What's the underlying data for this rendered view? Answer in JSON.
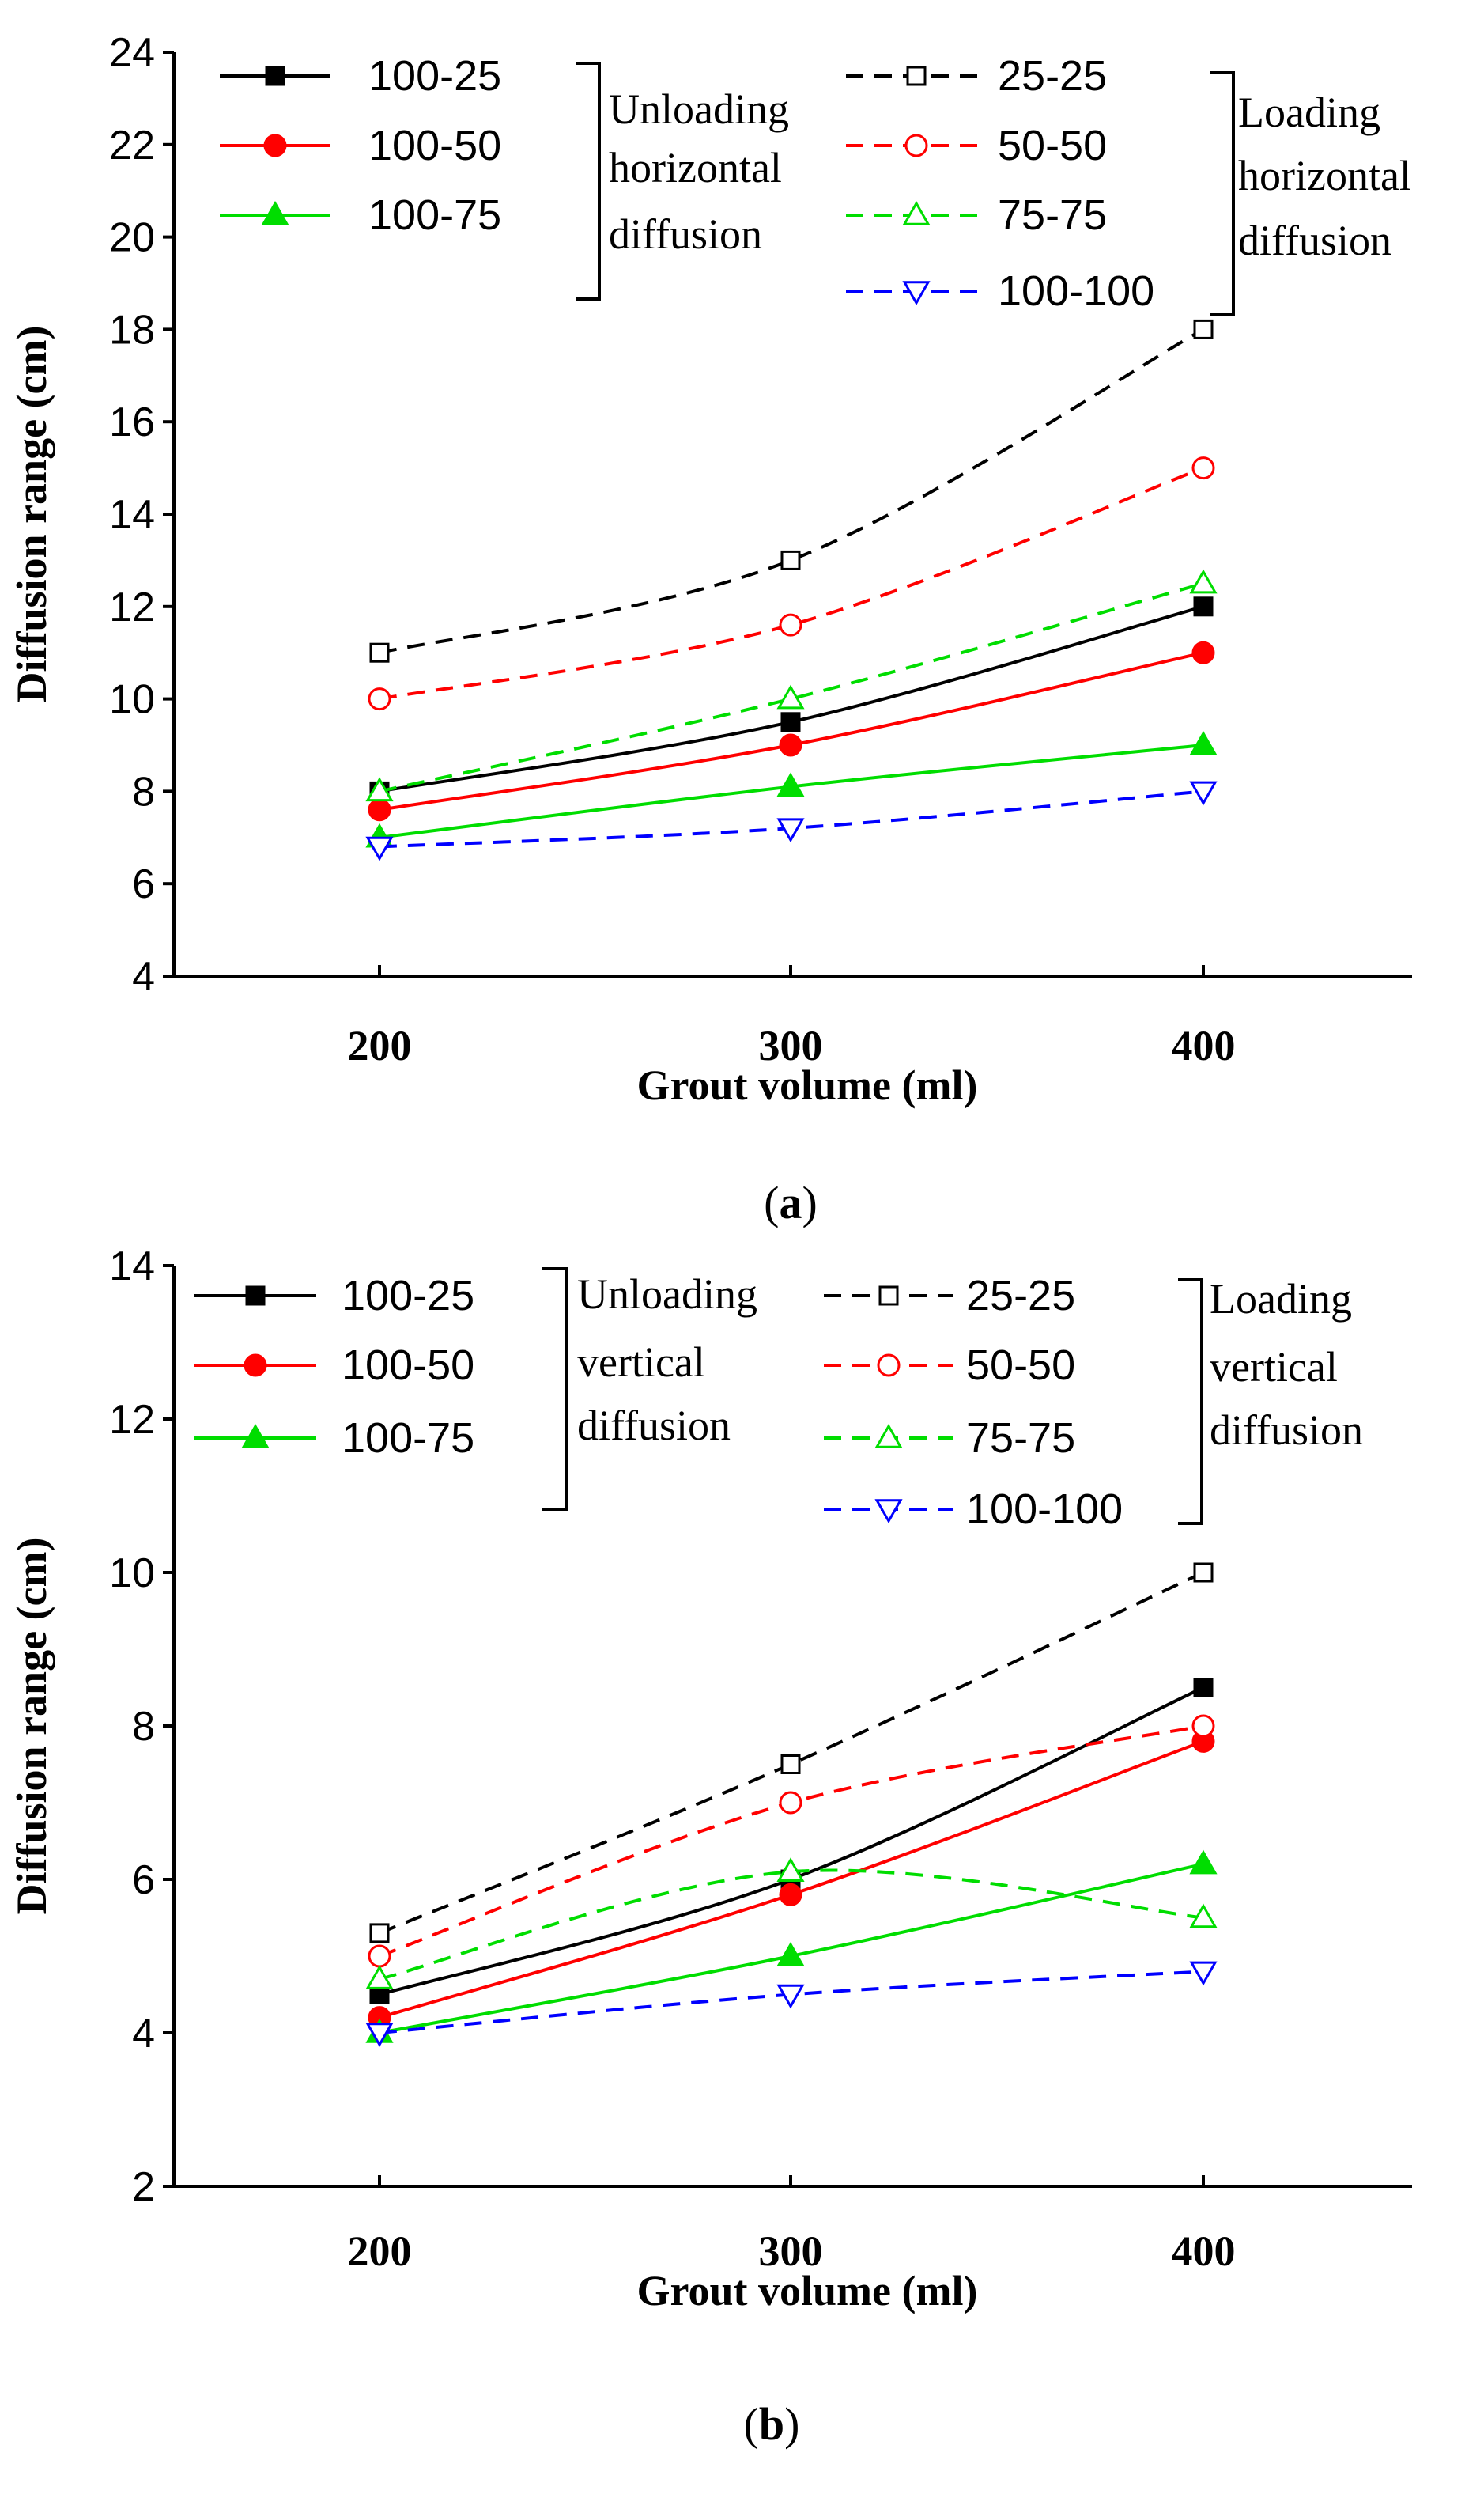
{
  "chart_data": [
    {
      "type": "line",
      "panel_label": "a",
      "xlabel": "Grout volume (ml)",
      "ylabel": "Diffusion range (cm)",
      "categories": [
        "200",
        "300",
        "400"
      ],
      "ylim": [
        4,
        24
      ],
      "yticks": [
        4,
        6,
        8,
        10,
        12,
        14,
        16,
        18,
        20,
        22,
        24
      ],
      "group_labels": {
        "unloading": [
          "Unloading",
          "horizontal",
          "diffusion"
        ],
        "loading": [
          "Loading",
          "horizontal",
          "diffusion"
        ]
      },
      "series": [
        {
          "name": "100-25",
          "group": "unloading",
          "color": "#000000",
          "dashed": false,
          "marker": "square",
          "filled": true,
          "values": [
            8.0,
            9.5,
            12.0
          ]
        },
        {
          "name": "100-50",
          "group": "unloading",
          "color": "#ff0000",
          "dashed": false,
          "marker": "circle",
          "filled": true,
          "values": [
            7.6,
            9.0,
            11.0
          ]
        },
        {
          "name": "100-75",
          "group": "unloading",
          "color": "#00dd00",
          "dashed": false,
          "marker": "triangle-up",
          "filled": true,
          "values": [
            7.0,
            8.1,
            9.0
          ]
        },
        {
          "name": "25-25",
          "group": "loading",
          "color": "#000000",
          "dashed": true,
          "marker": "square",
          "filled": false,
          "values": [
            11.0,
            13.0,
            18.0
          ]
        },
        {
          "name": "50-50",
          "group": "loading",
          "color": "#ff0000",
          "dashed": true,
          "marker": "circle",
          "filled": false,
          "values": [
            10.0,
            11.6,
            15.0
          ]
        },
        {
          "name": "75-75",
          "group": "loading",
          "color": "#00dd00",
          "dashed": true,
          "marker": "triangle-up",
          "filled": false,
          "values": [
            8.0,
            10.0,
            12.5
          ]
        },
        {
          "name": "100-100",
          "group": "loading",
          "color": "#0000ff",
          "dashed": true,
          "marker": "triangle-down",
          "filled": false,
          "values": [
            6.8,
            7.2,
            8.0
          ]
        }
      ]
    },
    {
      "type": "line",
      "panel_label": "b",
      "xlabel": "Grout volume (ml)",
      "ylabel": "Diffusion range (cm)",
      "categories": [
        "200",
        "300",
        "400"
      ],
      "ylim": [
        2,
        14
      ],
      "yticks": [
        2,
        4,
        6,
        8,
        10,
        12,
        14
      ],
      "group_labels": {
        "unloading": [
          "Unloading",
          "vertical",
          "diffusion"
        ],
        "loading": [
          "Loading",
          "vertical",
          "diffusion"
        ]
      },
      "series": [
        {
          "name": "100-25",
          "group": "unloading",
          "color": "#000000",
          "dashed": false,
          "marker": "square",
          "filled": true,
          "values": [
            4.5,
            6.0,
            8.5
          ]
        },
        {
          "name": "100-50",
          "group": "unloading",
          "color": "#ff0000",
          "dashed": false,
          "marker": "circle",
          "filled": true,
          "values": [
            4.2,
            5.8,
            7.8
          ]
        },
        {
          "name": "100-75",
          "group": "unloading",
          "color": "#00dd00",
          "dashed": false,
          "marker": "triangle-up",
          "filled": true,
          "values": [
            4.0,
            5.0,
            6.2
          ]
        },
        {
          "name": "25-25",
          "group": "loading",
          "color": "#000000",
          "dashed": true,
          "marker": "square",
          "filled": false,
          "values": [
            5.3,
            7.5,
            10.0
          ]
        },
        {
          "name": "50-50",
          "group": "loading",
          "color": "#ff0000",
          "dashed": true,
          "marker": "circle",
          "filled": false,
          "values": [
            5.0,
            7.0,
            8.0
          ]
        },
        {
          "name": "75-75",
          "group": "loading",
          "color": "#00dd00",
          "dashed": true,
          "marker": "triangle-up",
          "filled": false,
          "values": [
            4.7,
            6.1,
            5.5
          ]
        },
        {
          "name": "100-100",
          "group": "loading",
          "color": "#0000ff",
          "dashed": true,
          "marker": "triangle-down",
          "filled": false,
          "values": [
            4.0,
            4.5,
            4.8
          ]
        }
      ]
    }
  ]
}
